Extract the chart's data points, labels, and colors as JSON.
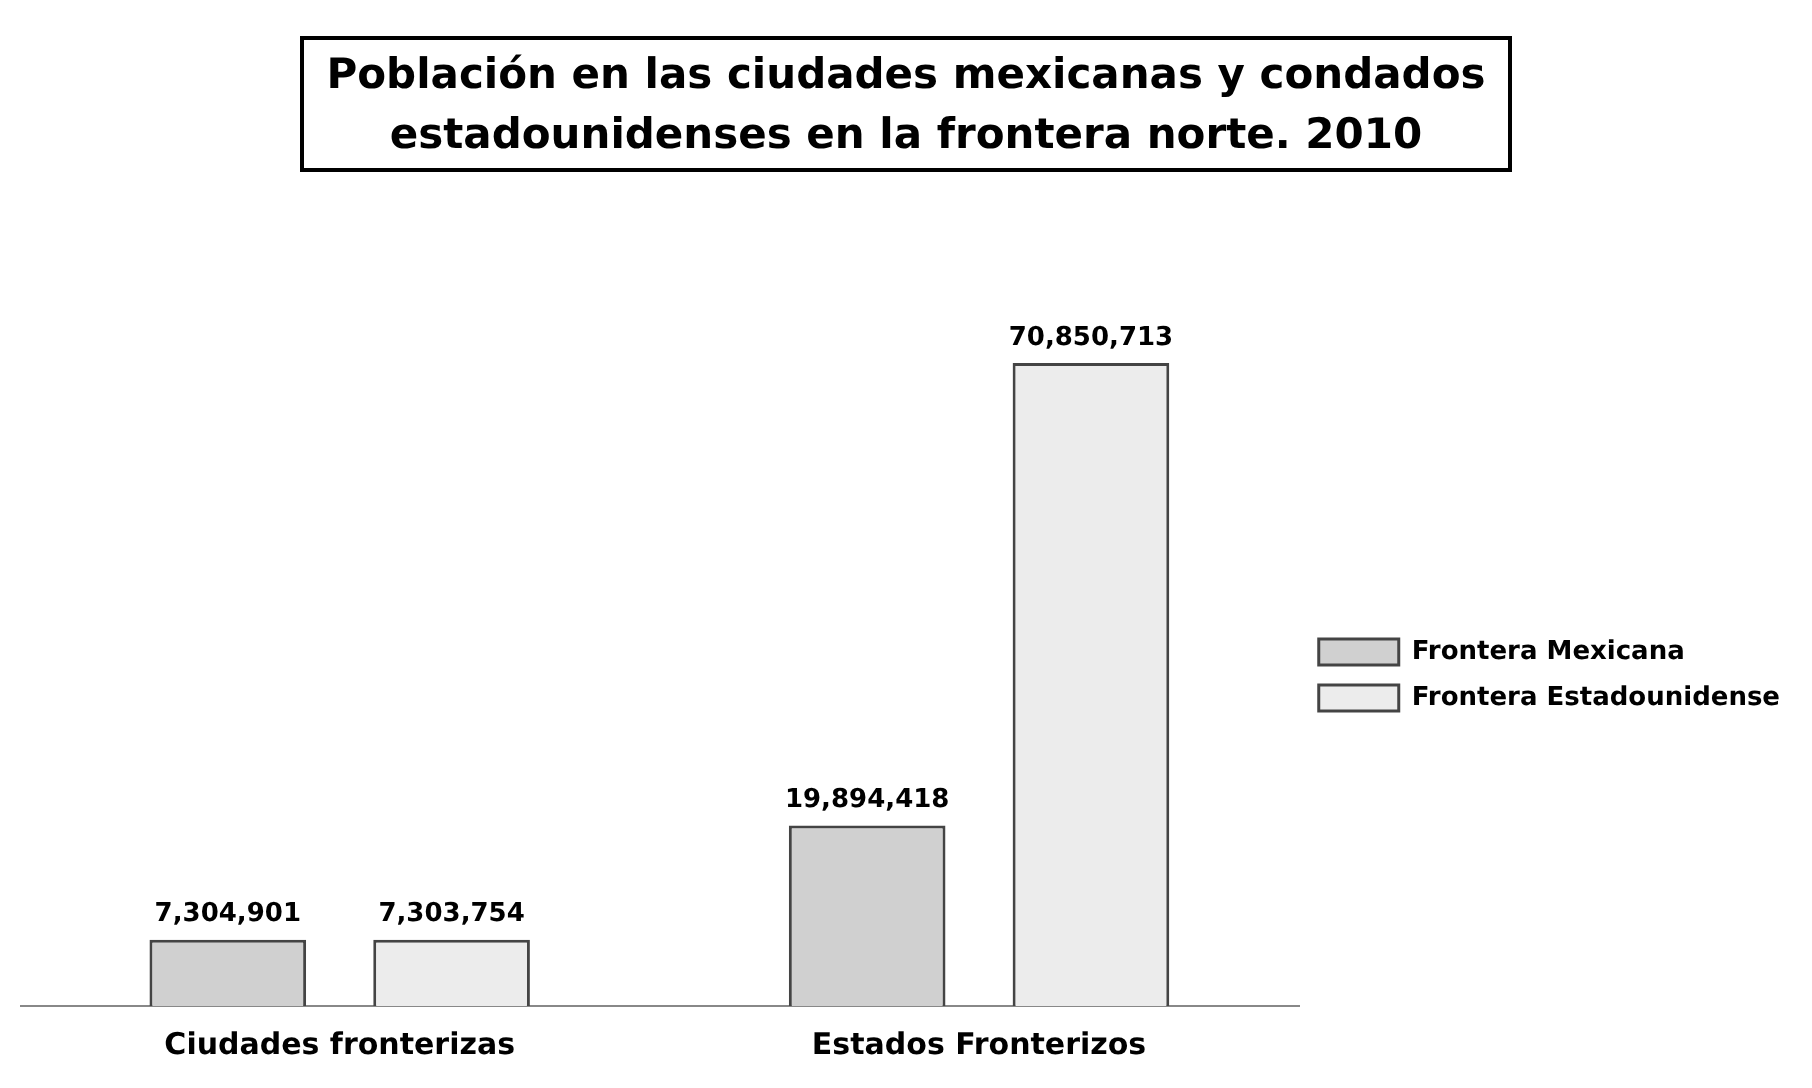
{
  "chart_data": {
    "type": "bar",
    "title": "Población en las ciudades mexicanas y condados estadounidenses  en la frontera norte. 2010",
    "categories": [
      "Ciudades fronterizas",
      "Estados Fronterizos"
    ],
    "series": [
      {
        "name": "Frontera Mexicana",
        "color": "#d0d0d0",
        "values": [
          7304901,
          19894418
        ],
        "value_labels": [
          "7,304,901",
          "19,894,418"
        ]
      },
      {
        "name": "Frontera Estadounidense",
        "color": "#ececec",
        "values": [
          7303754,
          70850713
        ],
        "value_labels": [
          "7,303,754",
          "70,850,713"
        ]
      }
    ],
    "legend": "right",
    "grid": false,
    "tick_labels": "x"
  }
}
